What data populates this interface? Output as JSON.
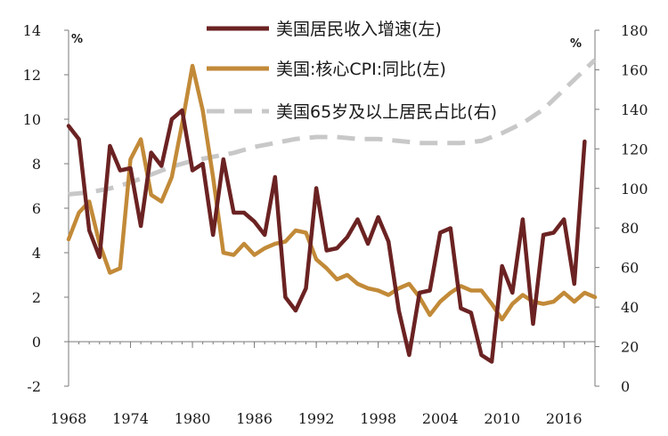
{
  "chart_data": {
    "type": "line",
    "title": "",
    "xlabel": "",
    "ylabel_left": "%",
    "ylabel_right": "%",
    "y_left_range": [
      -2,
      14
    ],
    "y_left_ticks": [
      14,
      12,
      10,
      8,
      6,
      4,
      2,
      0,
      -2
    ],
    "y_right_range": [
      0,
      180
    ],
    "y_right_ticks": [
      180,
      160,
      140,
      120,
      100,
      80,
      60,
      40,
      20,
      0
    ],
    "x_range": [
      1968,
      2019
    ],
    "x_ticks": [
      1968,
      1974,
      1980,
      1986,
      1992,
      1998,
      2004,
      2010,
      2016
    ],
    "legend_position": "top-center",
    "series": [
      {
        "name": "美国居民收入增速(左)",
        "axis": "left",
        "color": "#6b2222",
        "style": "solid",
        "x": [
          1968,
          1969,
          1970,
          1971,
          1972,
          1973,
          1974,
          1975,
          1976,
          1977,
          1978,
          1979,
          1980,
          1981,
          1982,
          1983,
          1984,
          1985,
          1986,
          1987,
          1988,
          1989,
          1990,
          1991,
          1992,
          1993,
          1994,
          1995,
          1996,
          1997,
          1998,
          1999,
          2000,
          2001,
          2002,
          2003,
          2004,
          2005,
          2006,
          2007,
          2008,
          2009,
          2010,
          2011,
          2012,
          2013,
          2014,
          2015,
          2016,
          2017,
          2018,
          2019
        ],
        "values": [
          9.7,
          9.1,
          5.0,
          3.8,
          8.8,
          7.7,
          7.8,
          5.2,
          8.5,
          7.9,
          10.0,
          10.4,
          7.7,
          8.0,
          4.8,
          8.2,
          5.8,
          5.8,
          5.4,
          4.8,
          7.4,
          2.0,
          1.4,
          2.4,
          6.9,
          4.1,
          4.2,
          4.7,
          5.5,
          4.4,
          5.6,
          4.5,
          1.4,
          -0.6,
          2.2,
          2.3,
          4.9,
          5.1,
          1.5,
          1.3,
          -0.6,
          -0.9,
          3.4,
          2.2,
          5.5,
          0.8,
          4.8,
          4.9,
          5.5,
          2.6,
          9.0,
          null
        ]
      },
      {
        "name": "美国:核心CPI:同比(左)",
        "axis": "left",
        "color": "#c28a38",
        "style": "solid",
        "x": [
          1968,
          1969,
          1970,
          1971,
          1972,
          1973,
          1974,
          1975,
          1976,
          1977,
          1978,
          1979,
          1980,
          1981,
          1982,
          1983,
          1984,
          1985,
          1986,
          1987,
          1988,
          1989,
          1990,
          1991,
          1992,
          1993,
          1994,
          1995,
          1996,
          1997,
          1998,
          1999,
          2000,
          2001,
          2002,
          2003,
          2004,
          2005,
          2006,
          2007,
          2008,
          2009,
          2010,
          2011,
          2012,
          2013,
          2014,
          2015,
          2016,
          2017,
          2018,
          2019
        ],
        "values": [
          4.6,
          5.8,
          6.3,
          4.4,
          3.1,
          3.3,
          8.2,
          9.1,
          6.6,
          6.3,
          7.4,
          9.8,
          12.4,
          10.4,
          7.4,
          4.0,
          3.9,
          4.4,
          3.9,
          4.2,
          4.4,
          4.5,
          5.0,
          4.9,
          3.7,
          3.3,
          2.8,
          3.0,
          2.6,
          2.4,
          2.3,
          2.1,
          2.4,
          2.6,
          2.0,
          1.2,
          1.8,
          2.2,
          2.5,
          2.3,
          2.3,
          1.7,
          1.0,
          1.7,
          2.1,
          1.8,
          1.7,
          1.8,
          2.2,
          1.8,
          2.2,
          2.0
        ]
      },
      {
        "name": "美国65岁及以上居民占比(右)",
        "axis": "right",
        "color": "#c8c8c8",
        "style": "dashed",
        "x": [
          1968,
          1970,
          1972,
          1974,
          1976,
          1978,
          1980,
          1982,
          1984,
          1986,
          1988,
          1990,
          1992,
          1994,
          1996,
          1998,
          2000,
          2002,
          2004,
          2006,
          2008,
          2010,
          2012,
          2014,
          2016,
          2018,
          2019
        ],
        "values": [
          97,
          98,
          100,
          103,
          107,
          111,
          114,
          116,
          118,
          121,
          123,
          125,
          126,
          126,
          125,
          125,
          124,
          123,
          123,
          123,
          124,
          128,
          133,
          140,
          150,
          160,
          165
        ]
      }
    ]
  }
}
